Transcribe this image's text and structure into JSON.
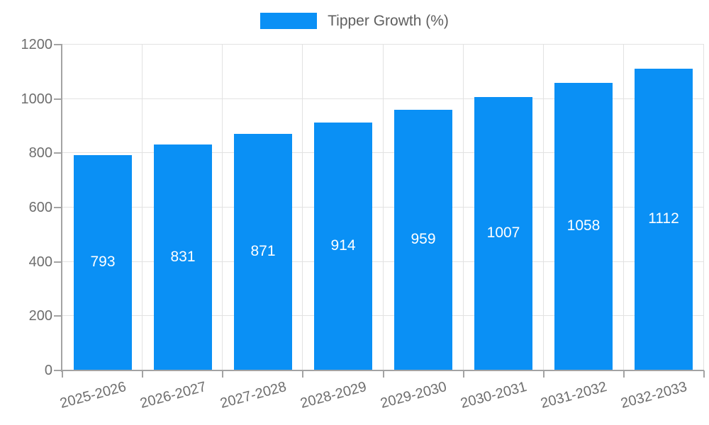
{
  "legend": {
    "label": "Tipper Growth (%)"
  },
  "colors": {
    "bar": "#0a90f5",
    "grid": "#e2e2e2",
    "axis": "#a3a3a3",
    "tick_text": "#6e6e6e",
    "legend_text": "#5f5f5f",
    "value_text": "#ffffff",
    "background": "#ffffff"
  },
  "chart_data": {
    "type": "bar",
    "categories": [
      "2025-2026",
      "2026-2027",
      "2027-2028",
      "2028-2029",
      "2029-2030",
      "2030-2031",
      "2031-2032",
      "2032-2033"
    ],
    "series": [
      {
        "name": "Tipper Growth (%)",
        "values": [
          793,
          831,
          871,
          914,
          959,
          1007,
          1058,
          1112
        ]
      }
    ],
    "ylim": [
      0,
      1200
    ],
    "yticks": [
      0,
      200,
      400,
      600,
      800,
      1000,
      1200
    ],
    "grid": true,
    "legend_position": "top-center",
    "value_labels_shown": true,
    "bar_color": "#0a90f5"
  }
}
